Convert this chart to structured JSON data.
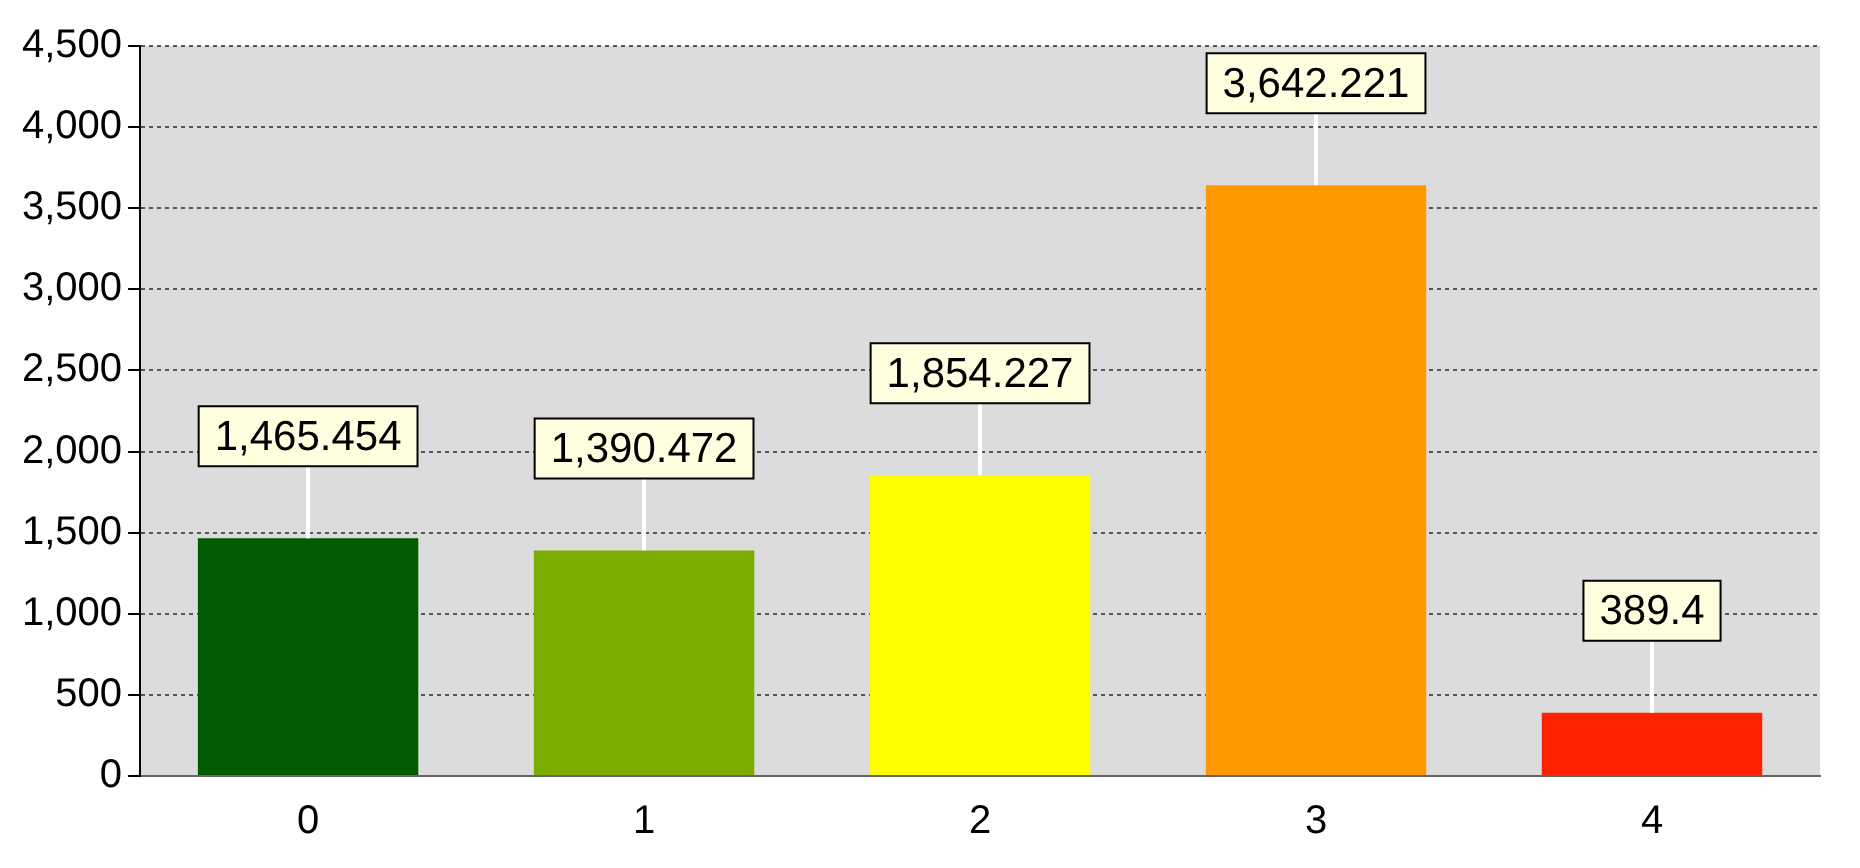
{
  "chart_data": {
    "type": "bar",
    "categories": [
      "0",
      "1",
      "2",
      "3",
      "4"
    ],
    "values": [
      1465.454,
      1390.472,
      1854.227,
      3642.221,
      389.4
    ],
    "colors": [
      "#005a00",
      "#7aad00",
      "#ffff00",
      "#ff9900",
      "#ff2200"
    ],
    "value_labels": [
      "1,465.454",
      "1,390.472",
      "1,854.227",
      "3,642.221",
      "389.4"
    ],
    "ylim": [
      0,
      4500
    ],
    "yticks": [
      {
        "value": 0,
        "label": "0"
      },
      {
        "value": 500,
        "label": "500"
      },
      {
        "value": 1000,
        "label": "1,000"
      },
      {
        "value": 1500,
        "label": "1,500"
      },
      {
        "value": 2000,
        "label": "2,000"
      },
      {
        "value": 2500,
        "label": "2,500"
      },
      {
        "value": 3000,
        "label": "3,000"
      },
      {
        "value": 3500,
        "label": "3,500"
      },
      {
        "value": 4000,
        "label": "4,000"
      },
      {
        "value": 4500,
        "label": "4,500"
      }
    ],
    "grid": "y",
    "legend": false
  }
}
